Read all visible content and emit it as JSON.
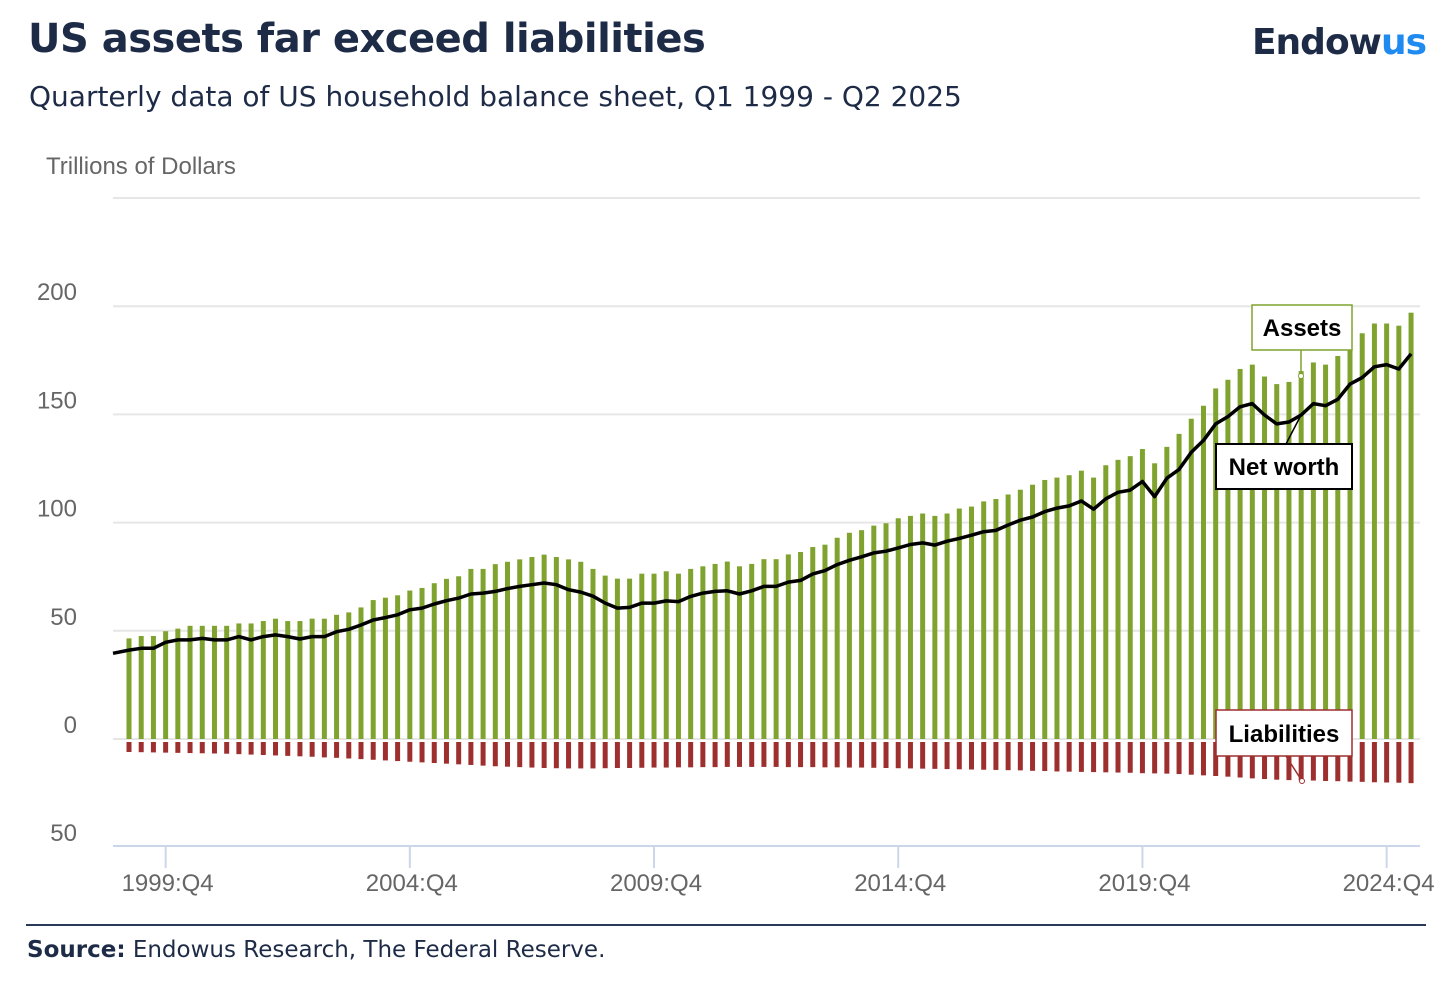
{
  "header": {
    "title": "US assets far exceed liabilities",
    "subtitle": "Quarterly data of US household balance sheet, Q1 1999 - Q2 2025",
    "logo_main": "Endow",
    "logo_accent": "us"
  },
  "footer": {
    "source_label": "Source:",
    "source_text": " Endowus Research, The Federal Reserve."
  },
  "colors": {
    "assets": "#7fa32e",
    "liabilities": "#9e2f2f",
    "net_worth": "#000000",
    "title": "#1e2b47",
    "logo_accent": "#1f8bf0"
  },
  "chart_data": {
    "type": "bar",
    "ylabel": "Trillions of Dollars",
    "ylim": [
      -50,
      250
    ],
    "grid": true,
    "x_range": [
      "1999:Q1",
      "2025:Q2"
    ],
    "frequency": "quarterly",
    "y_ticks": [
      {
        "value": 200,
        "label": "200"
      },
      {
        "value": 150,
        "label": "150"
      },
      {
        "value": 100,
        "label": "100"
      },
      {
        "value": 50,
        "label": "50"
      },
      {
        "value": 0,
        "label": "0"
      },
      {
        "value": -50,
        "label": "50"
      }
    ],
    "x_ticks": [
      "1999:Q4",
      "2004:Q4",
      "2009:Q4",
      "2014:Q4",
      "2019:Q4",
      "2024:Q4"
    ],
    "series": [
      {
        "name": "Assets",
        "type": "bar",
        "values": [
          46.5,
          47.6,
          47.6,
          49.8,
          51,
          52.3,
          52.3,
          52.3,
          52.3,
          53.4,
          53.4,
          54.5,
          55.6,
          54.5,
          54.5,
          55.6,
          55.6,
          57.4,
          58.5,
          60.8,
          64.2,
          65.3,
          66.4,
          68.6,
          69.8,
          72,
          74,
          75.2,
          78.6,
          78.6,
          80.8,
          81.9,
          83,
          84.1,
          85.2,
          84.1,
          83,
          81.9,
          78.6,
          75.5,
          74.1,
          74.1,
          76.4,
          76.4,
          77.5,
          76.4,
          78.6,
          79.8,
          80.9,
          82,
          79.8,
          80.9,
          83.1,
          83.1,
          85.3,
          86.4,
          88.7,
          89.8,
          93,
          95.3,
          96.5,
          98.6,
          99.7,
          102,
          103.1,
          104.2,
          103.1,
          104.2,
          106.5,
          107.4,
          109.8,
          110.9,
          113,
          115.2,
          117.5,
          119.7,
          120.8,
          121.9,
          124,
          120.8,
          126.5,
          129,
          130.7,
          134,
          127.4,
          135,
          141,
          148,
          154,
          162,
          166,
          171,
          173,
          167.5,
          164,
          165,
          170,
          174,
          173,
          177,
          183,
          187.5,
          192,
          192,
          191,
          197
        ]
      },
      {
        "name": "Liabilities",
        "type": "bar",
        "values": [
          -6.0,
          -6.1,
          -6.2,
          -6.3,
          -6.4,
          -6.5,
          -6.6,
          -6.7,
          -6.8,
          -7.0,
          -7.2,
          -7.4,
          -7.6,
          -7.8,
          -8.0,
          -8.2,
          -8.5,
          -8.7,
          -9.0,
          -9.3,
          -9.6,
          -9.9,
          -10.2,
          -10.5,
          -10.8,
          -11.1,
          -11.4,
          -11.7,
          -12.0,
          -12.3,
          -12.6,
          -12.8,
          -13.0,
          -13.2,
          -13.4,
          -13.5,
          -13.6,
          -13.6,
          -13.6,
          -13.5,
          -13.4,
          -13.4,
          -13.3,
          -13.2,
          -13.2,
          -13.1,
          -13.1,
          -13.0,
          -13.0,
          -12.9,
          -12.9,
          -12.9,
          -12.9,
          -12.9,
          -13.0,
          -13.0,
          -13.0,
          -13.1,
          -13.1,
          -13.2,
          -13.2,
          -13.3,
          -13.4,
          -13.5,
          -13.6,
          -13.7,
          -13.8,
          -13.9,
          -14.0,
          -14.1,
          -14.2,
          -14.3,
          -14.4,
          -14.5,
          -14.7,
          -14.8,
          -15.0,
          -15.1,
          -15.2,
          -15.3,
          -15.4,
          -15.5,
          -15.6,
          -15.8,
          -15.9,
          -16.0,
          -16.2,
          -16.5,
          -16.8,
          -17.1,
          -17.4,
          -17.8,
          -18.2,
          -18.5,
          -18.8,
          -19.0,
          -19.1,
          -19.2,
          -19.4,
          -19.5,
          -19.7,
          -19.8,
          -20.0,
          -20.1,
          -20.2,
          -20.4
        ]
      },
      {
        "name": "Net worth",
        "type": "line",
        "values": [
          41.1,
          41.9,
          41.9,
          44.7,
          45.8,
          45.8,
          46.5,
          45.8,
          45.8,
          47.3,
          45.8,
          47.3,
          48.1,
          47.3,
          46.2,
          47.3,
          47.3,
          49.6,
          50.7,
          52.7,
          55,
          56.1,
          57.4,
          59.7,
          60.5,
          62.4,
          63.9,
          65.1,
          67,
          67.4,
          68.2,
          69.5,
          70.5,
          71.3,
          72.1,
          71.3,
          69,
          67.9,
          66,
          62.8,
          60.5,
          60.8,
          62.8,
          62.8,
          63.8,
          63.5,
          65.9,
          67.4,
          68.2,
          68.5,
          67,
          68.5,
          70.5,
          70.5,
          72.5,
          73.3,
          76.3,
          77.8,
          80.6,
          82.6,
          84.2,
          86,
          86.8,
          88.3,
          89.9,
          90.6,
          89.6,
          91.4,
          92.7,
          94.2,
          95.8,
          96.4,
          98.9,
          101.1,
          102.6,
          105.1,
          106.7,
          107.7,
          110,
          106.2,
          111,
          114,
          115,
          119,
          112,
          120.5,
          124.6,
          132.5,
          138,
          145.6,
          149,
          153.5,
          155,
          149.7,
          145.6,
          146.5,
          149.7,
          155,
          154,
          157,
          164,
          167,
          172,
          173,
          171,
          178
        ]
      }
    ],
    "annotations": [
      "Assets",
      "Net worth",
      "Liabilities"
    ]
  }
}
